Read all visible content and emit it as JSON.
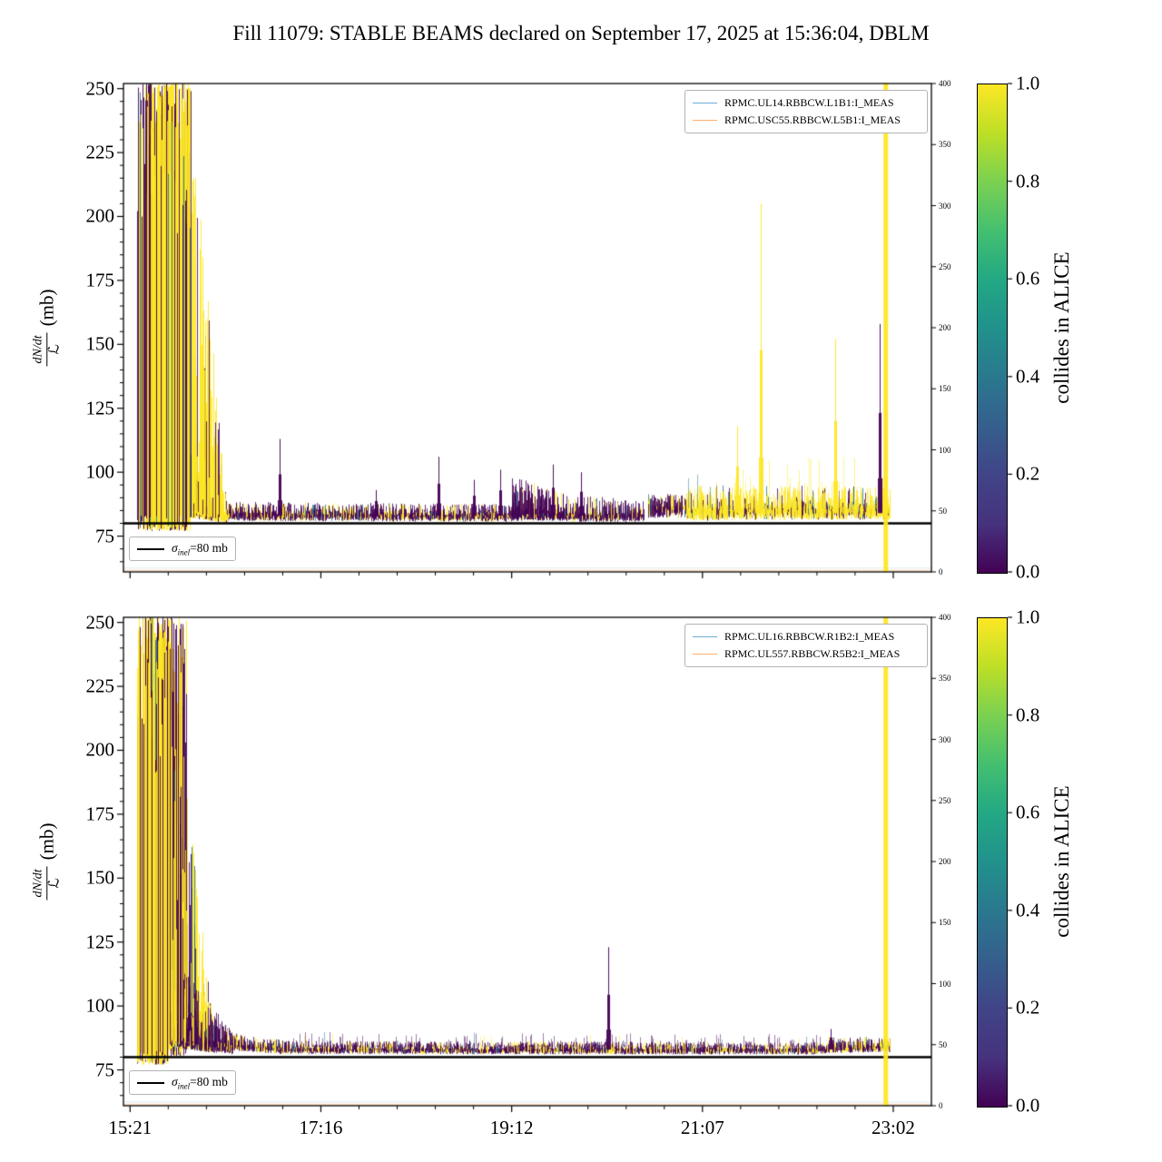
{
  "title": "Fill 11079: STABLE BEAMS declared on September 17, 2025 at 15:36:04, DBLM",
  "noise_colors": {
    "yellow": "#fde725",
    "purple": "#440154",
    "mid": "#2a788e"
  },
  "colorbar_colors": [
    "#fde725",
    "#bddf26",
    "#7ad151",
    "#44bf70",
    "#22a884",
    "#21918c",
    "#2a788e",
    "#355f8d",
    "#414487",
    "#46327e",
    "#440154"
  ],
  "chart_data": [
    {
      "type": "scatter",
      "title": "",
      "ylabel": {
        "numerator": "dN/dt",
        "denominator": "ℒ",
        "unit": "(mb)"
      },
      "ylim": [
        61,
        252
      ],
      "yticks": [
        75,
        100,
        125,
        150,
        175,
        200,
        225,
        250
      ],
      "xticks": {
        "minutes": [
          0,
          115,
          230,
          345,
          460
        ],
        "labels_visible": false
      },
      "right_axis": {
        "ticks": [
          0,
          50,
          100,
          150,
          200,
          250,
          300,
          350,
          400
        ]
      },
      "colorbar": {
        "label": "collides in ALICE",
        "ticks": [
          "1.0",
          "0.8",
          "0.6",
          "0.4",
          "0.2",
          "0.0"
        ]
      },
      "legend": [
        {
          "label": "RPMC.UL14.RBBCW.L1B1:I_MEAS",
          "color": "#6baed6"
        },
        {
          "label": "RPMC.USC55.RBBCW.L5B1:I_MEAS",
          "color": "#fdae6b"
        }
      ],
      "hline": {
        "y": 80,
        "color": "#000000",
        "label_parts": {
          "sym": "σ",
          "sub": "inel",
          "rest": "=80 mb"
        }
      },
      "baselines": [
        {
          "y": 62.5,
          "color": "#9ecae1",
          "alpha": 0.35
        },
        {
          "y": 61.6,
          "color": "#fdae6b",
          "alpha": 0.6
        }
      ],
      "bursts": [
        {
          "t0": 4,
          "t1": 9,
          "lo": 77,
          "hi": 252,
          "strokes": 3,
          "py": 0.6,
          "gap": 0.3
        },
        {
          "t0": 9,
          "t1": 36,
          "lo": 77,
          "hi": 252,
          "strokes": 6,
          "py": 0.7,
          "gap": 0.06
        }
      ],
      "bands": [
        {
          "t0": 36,
          "t1": 58,
          "b0": 85,
          "b1": 83,
          "u0": 165,
          "u1": 8,
          "d0": 3,
          "pow": 2.4,
          "py": 0.78,
          "strokes": 5,
          "alpha": 0.85
        },
        {
          "t0": 58,
          "t1": 230,
          "b0": 83.5,
          "b1": 83,
          "u0": 5,
          "u1": 4.5,
          "d0": 2.5,
          "pow": 2.0,
          "py": 0.3,
          "strokes": 3,
          "alpha": 0.8
        },
        {
          "t0": 230,
          "t1": 263,
          "b0": 83.5,
          "b1": 83.5,
          "u0": 15,
          "u1": 8,
          "d0": 2.5,
          "pow": 2.6,
          "py": 0.15,
          "strokes": 4,
          "alpha": 0.85
        },
        {
          "t0": 263,
          "t1": 310,
          "b0": 83,
          "b1": 83,
          "u0": 9,
          "u1": 6,
          "d0": 2.5,
          "pow": 2.4,
          "py": 0.2,
          "strokes": 3,
          "alpha": 0.8
        },
        {
          "t0": 312,
          "t1": 335,
          "b0": 86,
          "b1": 86,
          "u0": 6,
          "u1": 5,
          "d0": 4,
          "pow": 2.0,
          "py": 0.25,
          "strokes": 3,
          "alpha": 0.8
        },
        {
          "t0": 335,
          "t1": 458,
          "b0": 85,
          "b1": 85.5,
          "u0": 10,
          "u1": 9,
          "d0": 4,
          "pow": 2.8,
          "py": 0.82,
          "strokes": 4,
          "alpha": 0.8
        },
        {
          "t0": 335,
          "t1": 458,
          "b0": 86,
          "b1": 86,
          "u0": 22,
          "u1": 20,
          "d0": 0,
          "pow": 5.0,
          "py": 0.95,
          "strokes": 1,
          "alpha": 0.5
        }
      ],
      "spikes": [
        {
          "t": 90,
          "peak": 113,
          "base": 84,
          "color": "purple"
        },
        {
          "t": 148,
          "peak": 93,
          "base": 84,
          "color": "purple"
        },
        {
          "t": 186,
          "peak": 106,
          "base": 84,
          "color": "purple"
        },
        {
          "t": 207,
          "peak": 97,
          "base": 84,
          "color": "purple"
        },
        {
          "t": 223,
          "peak": 101,
          "base": 84,
          "color": "purple"
        },
        {
          "t": 255,
          "peak": 103,
          "base": 84,
          "color": "purple"
        },
        {
          "t": 272,
          "peak": 100,
          "base": 84,
          "color": "purple"
        },
        {
          "t": 366,
          "peak": 118,
          "base": 85,
          "color": "yellow"
        },
        {
          "t": 380,
          "peak": 205,
          "base": 85,
          "color": "yellow"
        },
        {
          "t": 425,
          "peak": 152,
          "base": 85,
          "color": "yellow"
        },
        {
          "t": 452,
          "peak": 158,
          "base": 85,
          "color": "purple"
        }
      ],
      "vlines": [
        {
          "t": 455.5,
          "color": "yellow",
          "width": 5
        }
      ]
    },
    {
      "type": "scatter",
      "title": "",
      "ylabel": {
        "numerator": "dN/dt",
        "denominator": "ℒ",
        "unit": "(mb)"
      },
      "ylim": [
        61,
        252
      ],
      "yticks": [
        75,
        100,
        125,
        150,
        175,
        200,
        225,
        250
      ],
      "xticks": {
        "minutes": [
          0,
          115,
          230,
          345,
          460
        ],
        "labels": [
          "15:21",
          "17:16",
          "19:12",
          "21:07",
          "23:02"
        ],
        "labels_visible": true
      },
      "right_axis": {
        "ticks": [
          0,
          50,
          100,
          150,
          200,
          250,
          300,
          350,
          400
        ]
      },
      "colorbar": {
        "label": "collides in ALICE",
        "ticks": [
          "1.0",
          "0.8",
          "0.6",
          "0.4",
          "0.2",
          "0.0"
        ]
      },
      "legend": [
        {
          "label": "RPMC.UL16.RBBCW.R1B2:I_MEAS",
          "color": "#6baed6"
        },
        {
          "label": "RPMC.UL557.RBBCW.R5B2:I_MEAS",
          "color": "#fdae6b"
        }
      ],
      "hline": {
        "y": 80,
        "color": "#000000",
        "label_parts": {
          "sym": "σ",
          "sub": "inel",
          "rest": "=80 mb"
        }
      },
      "baselines": [
        {
          "y": 62.5,
          "color": "#9ecae1",
          "alpha": 0.35
        },
        {
          "y": 61.6,
          "color": "#fdae6b",
          "alpha": 0.6
        }
      ],
      "bursts": [
        {
          "t0": 4,
          "t1": 9,
          "lo": 77,
          "hi": 252,
          "strokes": 3,
          "py": 0.6,
          "gap": 0.3
        },
        {
          "t0": 9,
          "t1": 23,
          "lo": 77,
          "hi": 252,
          "strokes": 6,
          "py": 0.68,
          "gap": 0.05
        },
        {
          "t0": 23,
          "t1": 34,
          "lo": 80,
          "hi": 252,
          "strokes": 3,
          "py": 0.5,
          "gap": 0.45
        }
      ],
      "bands": [
        {
          "t0": 24,
          "t1": 50,
          "b0": 87,
          "b1": 84.5,
          "u0": 150,
          "u1": 12,
          "d0": 3,
          "pow": 2.8,
          "py": 0.55,
          "strokes": 5,
          "alpha": 0.85
        },
        {
          "t0": 32,
          "t1": 62,
          "b0": 86,
          "b1": 84,
          "u0": 28,
          "u1": 6,
          "d0": 3,
          "pow": 1.8,
          "py": 0.22,
          "strokes": 4,
          "alpha": 0.8
        },
        {
          "t0": 62,
          "t1": 95,
          "b0": 84.5,
          "b1": 83,
          "u0": 5,
          "u1": 3.5,
          "d0": 2,
          "pow": 2.0,
          "py": 0.35,
          "strokes": 3,
          "alpha": 0.8
        },
        {
          "t0": 95,
          "t1": 420,
          "b0": 83,
          "b1": 82.8,
          "u0": 3.5,
          "u1": 3,
          "d0": 1.8,
          "pow": 2.0,
          "py": 0.3,
          "strokes": 3,
          "alpha": 0.8
        },
        {
          "t0": 95,
          "t1": 420,
          "b0": 84,
          "b1": 84,
          "u0": 6,
          "u1": 5,
          "d0": 0,
          "pow": 4.0,
          "py": 0.15,
          "strokes": 1,
          "alpha": 0.5
        },
        {
          "t0": 420,
          "t1": 458,
          "b0": 83.5,
          "b1": 84,
          "u0": 4.5,
          "u1": 4,
          "d0": 2,
          "pow": 2.0,
          "py": 0.4,
          "strokes": 3,
          "alpha": 0.8
        }
      ],
      "spikes": [
        {
          "t": 288,
          "peak": 123,
          "base": 84,
          "color": "purple"
        },
        {
          "t": 422,
          "peak": 91,
          "base": 84,
          "color": "purple"
        }
      ],
      "vlines": [
        {
          "t": 455.5,
          "color": "yellow",
          "width": 5
        }
      ]
    }
  ]
}
